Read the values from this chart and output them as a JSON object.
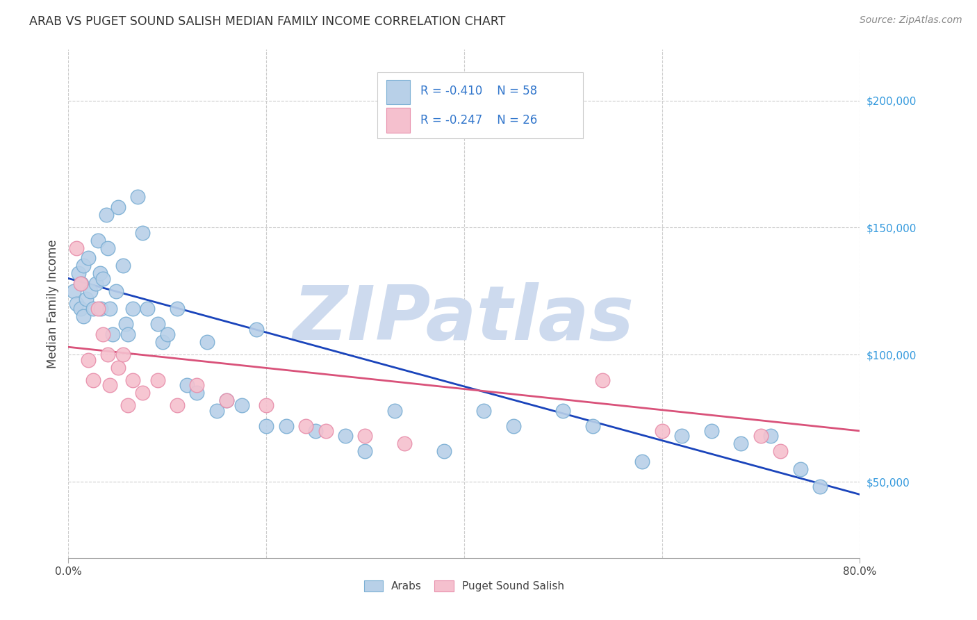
{
  "title": "ARAB VS PUGET SOUND SALISH MEDIAN FAMILY INCOME CORRELATION CHART",
  "source": "Source: ZipAtlas.com",
  "ylabel": "Median Family Income",
  "xlim": [
    0.0,
    0.8
  ],
  "ylim": [
    20000,
    220000
  ],
  "background_color": "#ffffff",
  "grid_color": "#cccccc",
  "arab_color": "#b8d0e8",
  "arab_edge_color": "#7bafd4",
  "salish_color": "#f5c0ce",
  "salish_edge_color": "#e88fab",
  "arab_line_color": "#1a44bb",
  "salish_line_color": "#d9527a",
  "legend_text_color": "#3377cc",
  "watermark": "ZIPatlas",
  "watermark_color": "#cddaee",
  "arab_scatter_x": [
    0.005,
    0.008,
    0.01,
    0.012,
    0.013,
    0.015,
    0.015,
    0.018,
    0.02,
    0.022,
    0.025,
    0.028,
    0.03,
    0.032,
    0.033,
    0.035,
    0.038,
    0.04,
    0.042,
    0.045,
    0.048,
    0.05,
    0.055,
    0.058,
    0.06,
    0.065,
    0.07,
    0.075,
    0.08,
    0.09,
    0.095,
    0.1,
    0.11,
    0.12,
    0.13,
    0.14,
    0.15,
    0.16,
    0.175,
    0.19,
    0.2,
    0.22,
    0.25,
    0.28,
    0.3,
    0.33,
    0.38,
    0.42,
    0.45,
    0.5,
    0.53,
    0.58,
    0.62,
    0.65,
    0.68,
    0.71,
    0.74,
    0.76
  ],
  "arab_scatter_y": [
    125000,
    120000,
    132000,
    118000,
    128000,
    135000,
    115000,
    122000,
    138000,
    125000,
    118000,
    128000,
    145000,
    132000,
    118000,
    130000,
    155000,
    142000,
    118000,
    108000,
    125000,
    158000,
    135000,
    112000,
    108000,
    118000,
    162000,
    148000,
    118000,
    112000,
    105000,
    108000,
    118000,
    88000,
    85000,
    105000,
    78000,
    82000,
    80000,
    110000,
    72000,
    72000,
    70000,
    68000,
    62000,
    78000,
    62000,
    78000,
    72000,
    78000,
    72000,
    58000,
    68000,
    70000,
    65000,
    68000,
    55000,
    48000
  ],
  "salish_scatter_x": [
    0.008,
    0.012,
    0.02,
    0.025,
    0.03,
    0.035,
    0.04,
    0.042,
    0.05,
    0.055,
    0.06,
    0.065,
    0.075,
    0.09,
    0.11,
    0.13,
    0.16,
    0.2,
    0.24,
    0.26,
    0.3,
    0.34,
    0.54,
    0.6,
    0.7,
    0.72
  ],
  "salish_scatter_y": [
    142000,
    128000,
    98000,
    90000,
    118000,
    108000,
    100000,
    88000,
    95000,
    100000,
    80000,
    90000,
    85000,
    90000,
    80000,
    88000,
    82000,
    80000,
    72000,
    70000,
    68000,
    65000,
    90000,
    70000,
    68000,
    62000
  ],
  "arab_bubble_size": 220,
  "salish_bubble_size": 220,
  "arab_line_x0": 0.0,
  "arab_line_x1": 0.8,
  "arab_line_y0": 130000,
  "arab_line_y1": 45000,
  "salish_line_x0": 0.0,
  "salish_line_x1": 0.8,
  "salish_line_y0": 103000,
  "salish_line_y1": 70000
}
